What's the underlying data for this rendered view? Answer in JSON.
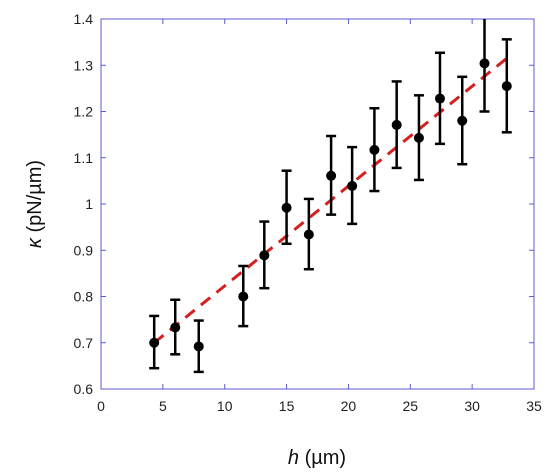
{
  "chart_data": {
    "type": "scatter",
    "xlabel_symbol": "h",
    "xlabel_unit": " (µm)",
    "ylabel_symbol": "κ",
    "ylabel_unit": " (pN/µm)",
    "xlim": [
      0,
      35
    ],
    "ylim": [
      0.6,
      1.4
    ],
    "xticks": [
      0,
      5,
      10,
      15,
      20,
      25,
      30,
      35
    ],
    "yticks": [
      0.6,
      0.7,
      0.8,
      0.9,
      1.0,
      1.1,
      1.2,
      1.3,
      1.4
    ],
    "xtick_labels": [
      "0",
      "5",
      "10",
      "15",
      "20",
      "25",
      "30",
      "35"
    ],
    "ytick_labels": [
      "0.6",
      "0.7",
      "0.8",
      "0.9",
      "1",
      "1.1",
      "1.2",
      "1.3",
      "1.4"
    ],
    "grid": false,
    "frame_color": "#5b5bd6",
    "series": [
      {
        "marker_color": "#000000",
        "points": [
          {
            "x": 4.3,
            "y": 0.7,
            "err_low": 0.055,
            "err_high": 0.058
          },
          {
            "x": 6.0,
            "y": 0.733,
            "err_low": 0.058,
            "err_high": 0.06
          },
          {
            "x": 7.9,
            "y": 0.692,
            "err_low": 0.055,
            "err_high": 0.056
          },
          {
            "x": 11.5,
            "y": 0.8,
            "err_low": 0.064,
            "err_high": 0.066
          },
          {
            "x": 13.2,
            "y": 0.889,
            "err_low": 0.071,
            "err_high": 0.073
          },
          {
            "x": 15.0,
            "y": 0.992,
            "err_low": 0.078,
            "err_high": 0.08
          },
          {
            "x": 16.8,
            "y": 0.934,
            "err_low": 0.075,
            "err_high": 0.077
          },
          {
            "x": 18.6,
            "y": 1.061,
            "err_low": 0.084,
            "err_high": 0.086
          },
          {
            "x": 20.3,
            "y": 1.039,
            "err_low": 0.082,
            "err_high": 0.084
          },
          {
            "x": 22.1,
            "y": 1.117,
            "err_low": 0.089,
            "err_high": 0.09
          },
          {
            "x": 23.9,
            "y": 1.171,
            "err_low": 0.093,
            "err_high": 0.094
          },
          {
            "x": 25.7,
            "y": 1.143,
            "err_low": 0.091,
            "err_high": 0.092
          },
          {
            "x": 27.4,
            "y": 1.228,
            "err_low": 0.098,
            "err_high": 0.099
          },
          {
            "x": 29.2,
            "y": 1.18,
            "err_low": 0.094,
            "err_high": 0.095
          },
          {
            "x": 31.0,
            "y": 1.304,
            "err_low": 0.104,
            "err_high": 0.105
          },
          {
            "x": 32.8,
            "y": 1.255,
            "err_low": 0.1,
            "err_high": 0.101
          }
        ]
      }
    ],
    "fit_line": {
      "color": "#d42020",
      "style": "dashed",
      "x": [
        4.3,
        32.8
      ],
      "y": [
        0.7,
        1.315
      ]
    }
  }
}
